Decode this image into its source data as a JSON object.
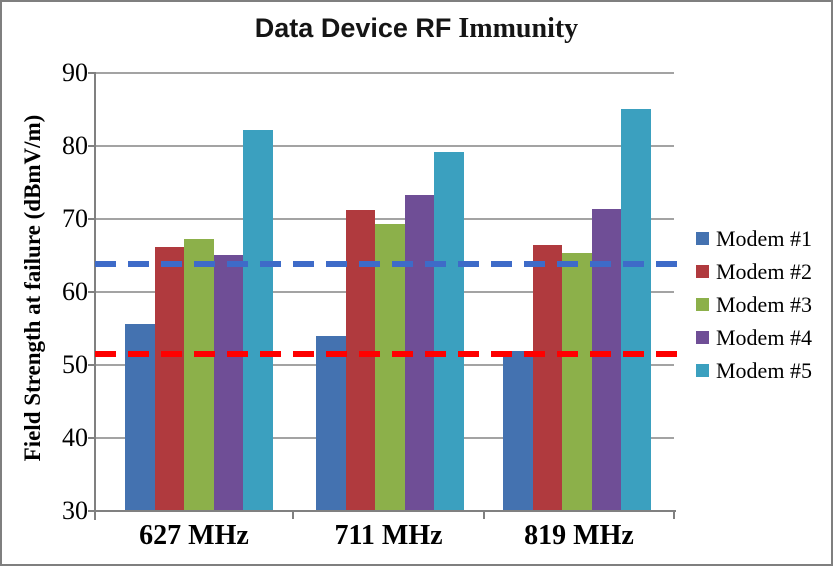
{
  "chart_data": {
    "type": "bar",
    "title_sans": "Data Device RF",
    "title_serif": " Immunity",
    "ylabel": "Field Strength at failure (dBmV/m)",
    "categories": [
      "627 MHz",
      "711 MHz",
      "819 MHz"
    ],
    "series": [
      {
        "name": "Modem #1",
        "color": "#4472b0",
        "values": [
          55.6,
          54.0,
          51.9
        ]
      },
      {
        "name": "Modem #2",
        "color": "#b03a3e",
        "values": [
          66.1,
          71.2,
          66.4
        ]
      },
      {
        "name": "Modem #3",
        "color": "#8cb04a",
        "values": [
          67.2,
          69.3,
          65.3
        ]
      },
      {
        "name": "Modem #4",
        "color": "#6f4e96",
        "values": [
          65.1,
          73.3,
          71.4
        ]
      },
      {
        "name": "Modem #5",
        "color": "#3ba0bf",
        "values": [
          82.2,
          79.2,
          85.1
        ]
      }
    ],
    "reference_lines": [
      {
        "value": 63.8,
        "color": "#3e6bc8",
        "style": "dashed"
      },
      {
        "value": 51.5,
        "color": "#fe0000",
        "style": "dashed"
      }
    ],
    "ylim": [
      30,
      90
    ],
    "yticks": [
      90,
      80,
      70,
      60,
      50,
      40,
      30
    ],
    "grid": true,
    "legend_position": "right",
    "chart_border_color": "#7f7f7f"
  }
}
